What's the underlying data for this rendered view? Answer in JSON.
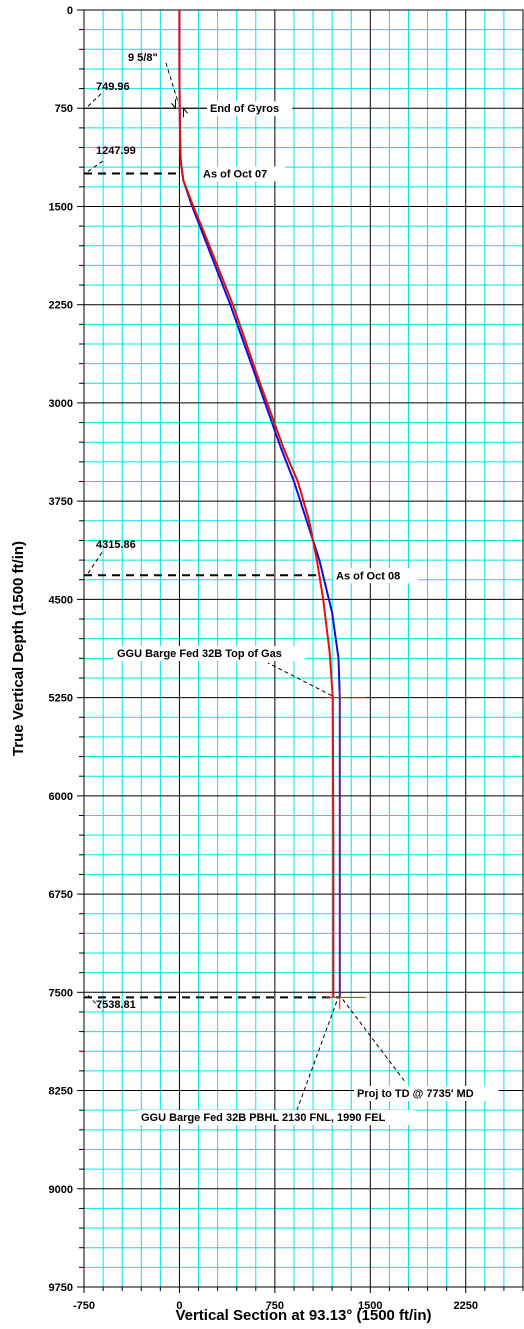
{
  "chart_data": {
    "type": "line",
    "xlabel": "Vertical Section at 93.13° (1500 ft/in)",
    "ylabel": "True Vertical Depth (1500 ft/in)",
    "xlim": [
      -750,
      2700
    ],
    "ylim": [
      0,
      9750
    ],
    "x_ticks": [
      -750,
      0,
      750,
      1500,
      2250
    ],
    "y_ticks": [
      0,
      750,
      1500,
      2250,
      3000,
      3750,
      4500,
      5250,
      6000,
      6750,
      7500,
      8250,
      9000,
      9750
    ],
    "grid": true,
    "colors": {
      "grid": "#00e5e5",
      "planned": "#1010d0",
      "actual": "#e01010",
      "axis": "#000000"
    },
    "series": [
      {
        "color": "#1010d0",
        "x": [
          0,
          0,
          5,
          10,
          30,
          100,
          200,
          400,
          600,
          800,
          900,
          1000,
          1100,
          1200,
          1250,
          1260,
          1260,
          1260
        ],
        "y": [
          0,
          500,
          1000,
          1150,
          1300,
          1500,
          1750,
          2250,
          2800,
          3350,
          3600,
          3900,
          4200,
          4600,
          4950,
          5250,
          6500,
          7540
        ]
      },
      {
        "color": "#e01010",
        "x": [
          0,
          0,
          5,
          10,
          30,
          110,
          215,
          420,
          615,
          820,
          930,
          1020,
          1080,
          1130,
          1180,
          1205,
          1210,
          1210
        ],
        "y": [
          0,
          500,
          1000,
          1150,
          1300,
          1500,
          1750,
          2250,
          2800,
          3350,
          3600,
          3900,
          4200,
          4500,
          4900,
          5250,
          6500,
          7540
        ]
      }
    ],
    "annotations": [
      {
        "text": "9 5/8\"",
        "x": 0,
        "y": 749.96
      },
      {
        "text": "End of Gyros",
        "x": 0,
        "y": 749.96
      },
      {
        "text": "749.96",
        "y": 749.96
      },
      {
        "text": "1247.99",
        "y": 1247.99
      },
      {
        "text": "As of Oct 07",
        "y": 1247.99
      },
      {
        "text": "4315.86",
        "y": 4315.86
      },
      {
        "text": "As of Oct 08",
        "y": 4315.86
      },
      {
        "text": "GGU Barge Fed 32B Top of Gas",
        "x": 1260,
        "y": 5250
      },
      {
        "text": "7538.81",
        "y": 7538.81
      },
      {
        "text": "Proj to TD @ 7735' MD",
        "x": 1260,
        "y": 7538.81
      },
      {
        "text": "GGU Barge Fed 32B PBHL 2130 FNL, 1990 FEL",
        "x": 1260,
        "y": 7538.81
      }
    ]
  }
}
